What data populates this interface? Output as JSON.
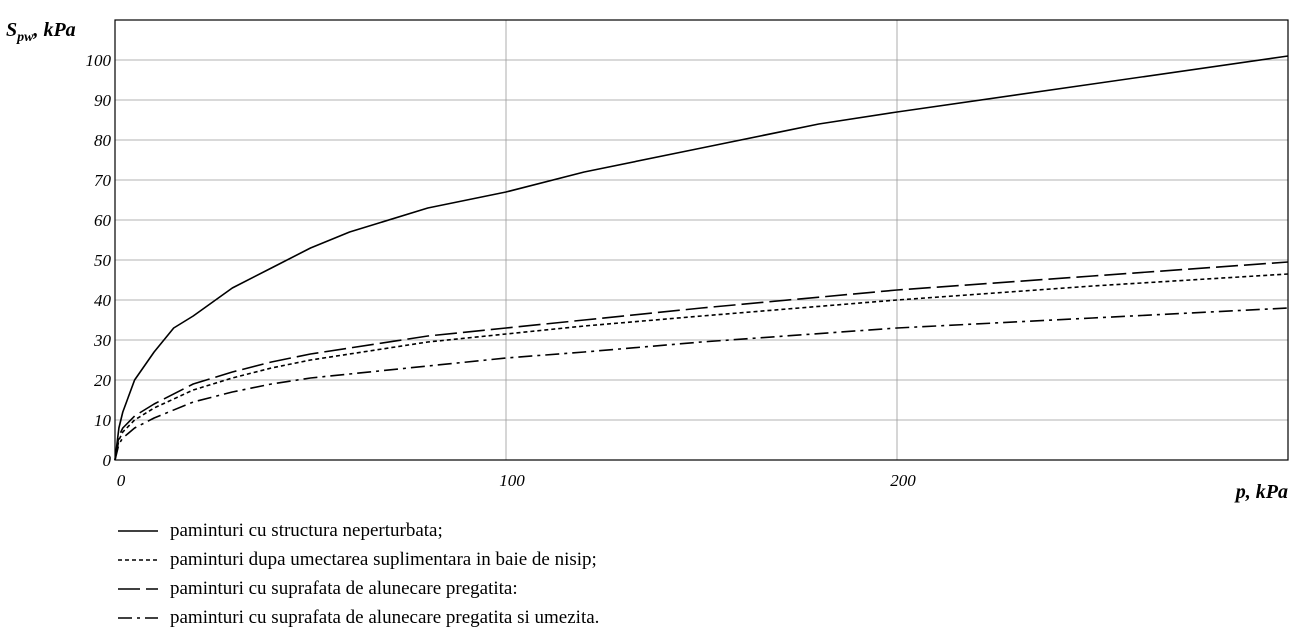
{
  "chart_data": {
    "type": "line",
    "xlabel": "p, kPa",
    "ylabel": {
      "main": "S",
      "subscript": "pw",
      "suffix": ", kPa"
    },
    "xlim": [
      0,
      300
    ],
    "ylim": [
      0,
      110
    ],
    "x_ticks": [
      0,
      100,
      200
    ],
    "y_ticks": [
      0,
      10,
      20,
      30,
      40,
      50,
      60,
      70,
      80,
      90,
      100
    ],
    "grid": true,
    "legend_position": "bottom-left",
    "series": [
      {
        "name": "paminturi cu structura neperturbata;",
        "dash": "solid",
        "x": [
          0,
          1,
          2,
          5,
          10,
          15,
          20,
          30,
          40,
          50,
          60,
          80,
          100,
          120,
          150,
          180,
          200,
          250,
          300
        ],
        "y": [
          0,
          8,
          12,
          20,
          27,
          33,
          36,
          43,
          48,
          53,
          57,
          63,
          67,
          72,
          78,
          84,
          87,
          94,
          101
        ]
      },
      {
        "name": "paminturi dupa umectarea suplimentara in baie de nisip;",
        "dash": "dotted",
        "x": [
          0,
          1,
          2,
          5,
          10,
          20,
          30,
          40,
          50,
          60,
          80,
          100,
          120,
          150,
          200,
          250,
          300
        ],
        "y": [
          0,
          5,
          7,
          10,
          13,
          17.5,
          20.5,
          23,
          25,
          26.5,
          29.5,
          31.5,
          33.5,
          36,
          40,
          43.5,
          46.5
        ]
      },
      {
        "name": "paminturi cu suprafata de alunecare pregatita:",
        "dash": "dashed",
        "x": [
          0,
          1,
          2,
          5,
          10,
          20,
          30,
          40,
          50,
          60,
          80,
          100,
          120,
          150,
          200,
          250,
          300
        ],
        "y": [
          0,
          6,
          8,
          11,
          14,
          19,
          22,
          24.5,
          26.5,
          28,
          31,
          33,
          35,
          38,
          42.5,
          46,
          49.5
        ]
      },
      {
        "name": "paminturi cu suprafata de alunecare pregatita si umezita.",
        "dash": "dashdot",
        "x": [
          0,
          1,
          2,
          5,
          10,
          20,
          30,
          40,
          50,
          60,
          80,
          100,
          120,
          150,
          200,
          250,
          300
        ],
        "y": [
          0,
          4,
          5.5,
          8,
          10.5,
          14.5,
          17,
          19,
          20.5,
          21.5,
          23.5,
          25.5,
          27,
          29.5,
          33,
          35.5,
          38
        ]
      }
    ]
  }
}
